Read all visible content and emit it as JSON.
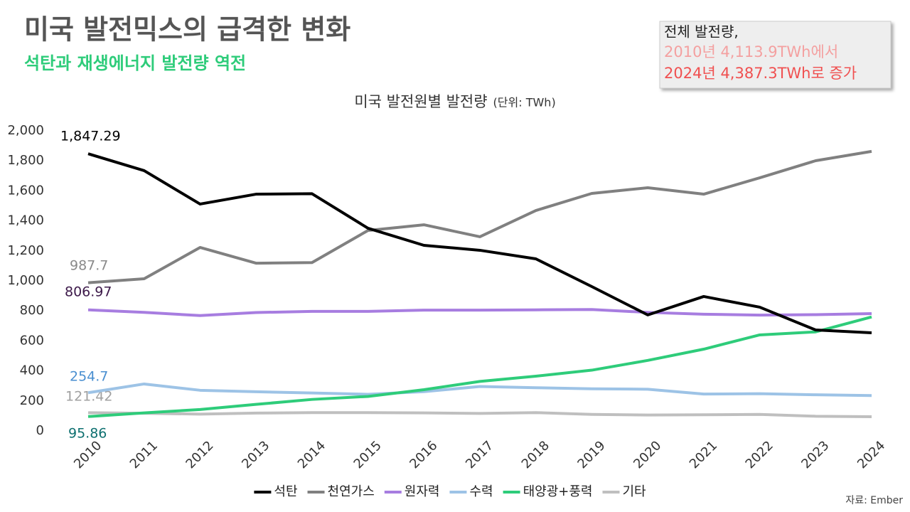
{
  "header": {
    "title": "미국 발전믹스의 급격한 변화",
    "subtitle": "석탄과 재생에너지 발전량 역전"
  },
  "info_box": {
    "lines": [
      "전체 발전량,",
      "2010년 4,113.9TWh에서",
      "2024년 4,387.3TWh로 증가"
    ]
  },
  "source": "자료: Ember",
  "chart_data": {
    "type": "line",
    "title": "미국 발전원별 발전량",
    "unit": "(단위: TWh)",
    "categories": [
      "2010",
      "2011",
      "2012",
      "2013",
      "2014",
      "2015",
      "2016",
      "2017",
      "2018",
      "2019",
      "2020",
      "2021",
      "2022",
      "2023",
      "2024"
    ],
    "ylim": [
      0,
      2000
    ],
    "yticks": [
      0,
      200,
      400,
      600,
      800,
      {
        "value": 1000,
        "label": "1,000"
      },
      {
        "value": 1200,
        "label": "1,200"
      },
      {
        "value": 1400,
        "label": "1,400"
      },
      {
        "value": 1600,
        "label": "1,600"
      },
      {
        "value": 1800,
        "label": "1,800"
      },
      {
        "value": 2000,
        "label": "2,000"
      }
    ],
    "grid": false,
    "legend": "bottom",
    "series": [
      {
        "name": "석탄",
        "color": "#000000",
        "label_color": "#000000",
        "values": [
          1847.29,
          1735,
          1512,
          1578,
          1581,
          1351,
          1237,
          1204,
          1147,
          962,
          773,
          896,
          825,
          673,
          654
        ],
        "value_labels": [
          "1,847.29",
          null,
          null,
          null,
          null,
          null,
          null,
          null,
          null,
          null,
          null,
          null,
          null,
          null,
          null
        ]
      },
      {
        "name": "천연가스",
        "color": "#808080",
        "label_color": "#8a8a8a",
        "values": [
          987.7,
          1014,
          1223,
          1118,
          1122,
          1336,
          1374,
          1294,
          1469,
          1583,
          1621,
          1578,
          1687,
          1801,
          1863
        ],
        "value_labels": [
          "987.7",
          null,
          null,
          null,
          null,
          null,
          null,
          null,
          null,
          null,
          null,
          null,
          null,
          null,
          null
        ]
      },
      {
        "name": "원자력",
        "color": "#a77de0",
        "label_color": "#3d1a4a",
        "values": [
          806.97,
          790,
          769,
          789,
          797,
          797,
          805,
          805,
          807,
          809,
          790,
          778,
          772,
          775,
          782
        ],
        "value_labels": [
          "806.97",
          null,
          null,
          null,
          null,
          null,
          null,
          null,
          null,
          null,
          null,
          null,
          null,
          null,
          null
        ]
      },
      {
        "name": "수력",
        "color": "#9dc3e6",
        "label_color": "#4a8fd0",
        "values": [
          254.7,
          313,
          271,
          261,
          253,
          244,
          262,
          296,
          288,
          281,
          278,
          246,
          248,
          241,
          236
        ],
        "value_labels": [
          "254.7",
          null,
          null,
          null,
          null,
          null,
          null,
          null,
          null,
          null,
          null,
          null,
          null,
          null,
          null
        ]
      },
      {
        "name": "태양광+풍력",
        "color": "#2ecc7a",
        "label_color": "#0e7070",
        "values": [
          95.86,
          120,
          143,
          177,
          210,
          230,
          275,
          330,
          365,
          405,
          470,
          545,
          640,
          660,
          760
        ],
        "value_labels": [
          "95.86",
          null,
          null,
          null,
          null,
          null,
          null,
          null,
          null,
          null,
          null,
          null,
          null,
          null,
          null
        ]
      },
      {
        "name": "기타",
        "color": "#bfbfbf",
        "label_color": "#a0a0a0",
        "values": [
          121.42,
          118,
          112,
          119,
          122,
          122,
          120,
          117,
          122,
          110,
          106,
          108,
          110,
          98,
          95
        ],
        "value_labels": [
          "121.42",
          null,
          null,
          null,
          null,
          null,
          null,
          null,
          null,
          null,
          null,
          null,
          null,
          null,
          null
        ]
      }
    ]
  }
}
